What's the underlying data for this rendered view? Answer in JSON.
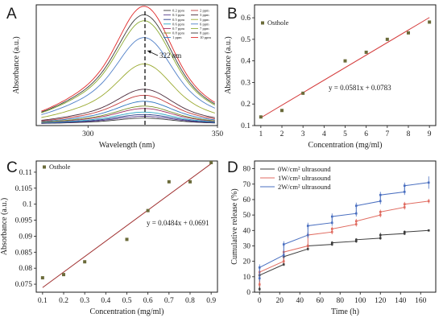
{
  "figure": {
    "panels": [
      {
        "letter": "A"
      },
      {
        "letter": "B"
      },
      {
        "letter": "C"
      },
      {
        "letter": "D"
      }
    ]
  },
  "chart_data": [
    {
      "panel": "A",
      "type": "line",
      "xlabel": "Wavelength (nm)",
      "ylabel": "Absorbance (a.u.)",
      "xlim": [
        280,
        350
      ],
      "ylim": [
        0,
        1
      ],
      "xticks": [
        300,
        350
      ],
      "yticks": [],
      "peak_wavelength": 322,
      "annotation": "322 nm",
      "legend_columns": 2,
      "series": [
        {
          "name": "0.2 ppm",
          "color": "#3a3a3a",
          "peak": 0.05
        },
        {
          "name": "0.3 ppm",
          "color": "#5a3f8c",
          "peak": 0.065
        },
        {
          "name": "0.5 ppm",
          "color": "#2d3f8a",
          "peak": 0.08
        },
        {
          "name": "0.6 ppm",
          "color": "#2aa7c4",
          "peak": 0.1
        },
        {
          "name": "0.7 ppm",
          "color": "#9e2c5f",
          "peak": 0.13
        },
        {
          "name": "0.8 ppm",
          "color": "#7a8f2a",
          "peak": 0.15
        },
        {
          "name": "1 ppm",
          "color": "#2f77c0",
          "peak": 0.19
        },
        {
          "name": "2 ppm",
          "color": "#c23b3b",
          "peak": 0.24
        },
        {
          "name": "3 ppm",
          "color": "#4a2a3a",
          "peak": 0.29
        },
        {
          "name": "5 ppm",
          "color": "#9aaa30",
          "peak": 0.5
        },
        {
          "name": "6 ppm",
          "color": "#4f7fc7",
          "peak": 0.72
        },
        {
          "name": "7 ppm",
          "color": "#8aaa30",
          "peak": 0.86
        },
        {
          "name": "8 ppm",
          "color": "#3b3b3b",
          "peak": 0.91
        },
        {
          "name": "10 ppm",
          "color": "#e02828",
          "peak": 0.98
        }
      ]
    },
    {
      "panel": "B",
      "type": "scatter",
      "xlabel": "Concentration (mg/ml)",
      "ylabel": "Absorbance (a.u.)",
      "xlim": [
        0.7,
        9.3
      ],
      "ylim": [
        0.1,
        0.66
      ],
      "xticks": [
        1,
        2,
        3,
        4,
        5,
        6,
        7,
        8,
        9
      ],
      "yticks": [
        0.1,
        0.2,
        0.3,
        0.4,
        0.5,
        0.6
      ],
      "legend": "Osthole",
      "equation": "y = 0.0581x + 0.0783",
      "fit": {
        "slope": 0.0581,
        "intercept": 0.0783
      },
      "x": [
        1,
        2,
        3,
        5,
        6,
        7,
        8,
        9
      ],
      "y": [
        0.14,
        0.17,
        0.25,
        0.4,
        0.44,
        0.5,
        0.53,
        0.58
      ]
    },
    {
      "panel": "C",
      "type": "scatter",
      "xlabel": "Concentration (mg/ml)",
      "ylabel": "Absorbance (a.u.)",
      "xlim": [
        0.07,
        0.93
      ],
      "ylim": [
        0.0725,
        0.1135
      ],
      "xticks": [
        0.1,
        0.2,
        0.3,
        0.4,
        0.5,
        0.6,
        0.7,
        0.8,
        0.9
      ],
      "yticks": [
        0.075,
        0.08,
        0.085,
        0.09,
        0.095,
        0.1,
        0.105,
        0.11
      ],
      "legend": "Osthole",
      "equation": "y = 0.0484x + 0.0691",
      "fit": {
        "slope": 0.0484,
        "intercept": 0.0691
      },
      "x": [
        0.1,
        0.2,
        0.3,
        0.5,
        0.6,
        0.7,
        0.8,
        0.9
      ],
      "y": [
        0.077,
        0.078,
        0.082,
        0.089,
        0.098,
        0.107,
        0.107,
        0.113
      ]
    },
    {
      "panel": "D",
      "type": "line",
      "xlabel": "Time (h)",
      "ylabel": "Cumulative release (%)",
      "xlim": [
        -5,
        175
      ],
      "ylim": [
        0,
        85
      ],
      "xticks": [
        0,
        20,
        40,
        60,
        80,
        100,
        120,
        140,
        160
      ],
      "yticks": [
        0,
        10,
        20,
        30,
        40,
        50,
        60,
        70,
        80
      ],
      "x": [
        0,
        0,
        24,
        24,
        48,
        48,
        72,
        72,
        96,
        96,
        120,
        120,
        144,
        144,
        168
      ],
      "series": [
        {
          "name": "0W/cm² ultrasound",
          "color": "#3d3d3d",
          "values": [
            2,
            11,
            18,
            23,
            28,
            30,
            31,
            32,
            33,
            34,
            35,
            37,
            38,
            39,
            40
          ],
          "errors": [
            1.5,
            1.5,
            1,
            1.5,
            1,
            1,
            1,
            1,
            1,
            1,
            1,
            1.5,
            1,
            1,
            0.5
          ]
        },
        {
          "name": "1W/cm² ultrasound",
          "color": "#e06b60",
          "values": [
            5,
            13,
            20,
            26,
            30,
            37,
            39,
            41,
            44,
            46,
            50,
            52,
            55,
            57,
            59
          ],
          "errors": [
            1.5,
            1.5,
            1.5,
            1.5,
            1.5,
            1.5,
            1.5,
            1.5,
            1.5,
            1.5,
            1.5,
            1.5,
            1.5,
            1.5,
            1.5
          ]
        },
        {
          "name": "2W/cm² ultrasound",
          "color": "#4a6fc0",
          "values": [
            9,
            16,
            24,
            31,
            37,
            43,
            45,
            49,
            51,
            56,
            59,
            63,
            65,
            69,
            71
          ],
          "errors": [
            2,
            2,
            2,
            2,
            2,
            2,
            2,
            2,
            2,
            2,
            2,
            2,
            2,
            2,
            4
          ]
        }
      ]
    }
  ]
}
